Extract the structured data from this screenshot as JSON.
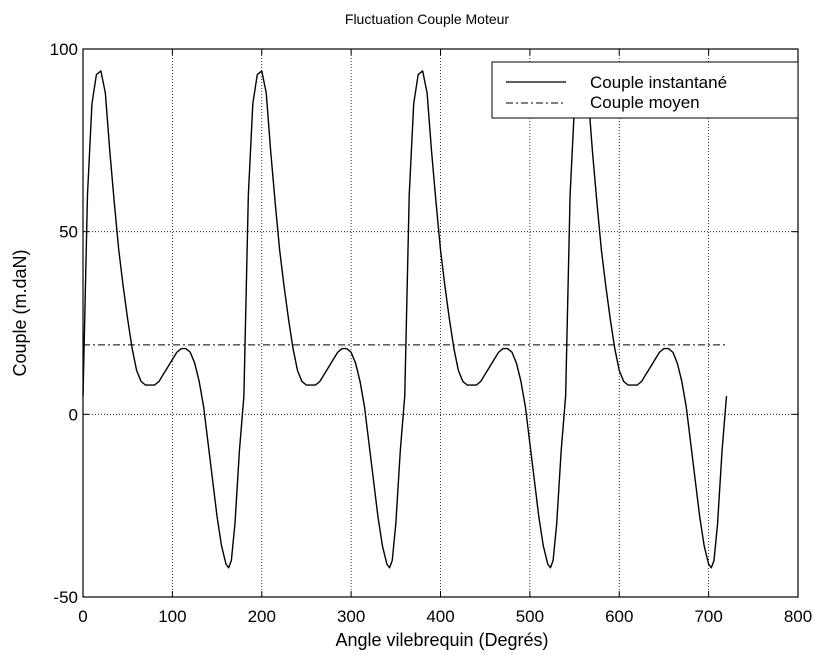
{
  "chart_data": {
    "type": "line",
    "title": "Fluctuation Couple Moteur",
    "xlabel": "Angle vilebrequin (Degrés)",
    "ylabel": "Couple (m.daN)",
    "xlim": [
      0,
      800
    ],
    "ylim": [
      -50,
      100
    ],
    "xticks": [
      0,
      100,
      200,
      300,
      400,
      500,
      600,
      700,
      800
    ],
    "yticks": [
      -50,
      0,
      50,
      100
    ],
    "grid": true,
    "legend_position": "top-right",
    "series": [
      {
        "name": "Couple instantané",
        "style": "solid",
        "color": "#000000",
        "x": [
          0,
          5,
          10,
          15,
          20,
          25,
          30,
          35,
          40,
          45,
          50,
          55,
          60,
          65,
          70,
          75,
          80,
          85,
          90,
          95,
          100,
          105,
          110,
          115,
          120,
          125,
          130,
          135,
          140,
          145,
          150,
          155,
          160,
          163,
          166,
          170,
          175,
          180,
          185,
          190,
          195,
          200,
          205,
          210,
          215,
          220,
          225,
          230,
          235,
          240,
          245,
          250,
          255,
          260,
          265,
          270,
          275,
          280,
          285,
          290,
          295,
          300,
          305,
          310,
          315,
          320,
          325,
          330,
          335,
          340,
          343,
          346,
          350,
          355,
          360,
          365,
          370,
          375,
          380,
          385,
          390,
          395,
          400,
          405,
          410,
          415,
          420,
          425,
          430,
          435,
          440,
          445,
          450,
          455,
          460,
          465,
          470,
          475,
          480,
          485,
          490,
          495,
          500,
          505,
          510,
          515,
          520,
          523,
          526,
          530,
          535,
          540,
          545,
          550,
          555,
          560,
          565,
          570,
          575,
          580,
          585,
          590,
          595,
          600,
          605,
          610,
          615,
          620,
          625,
          630,
          635,
          640,
          645,
          650,
          655,
          660,
          665,
          670,
          675,
          680,
          685,
          690,
          695,
          700,
          703,
          706,
          710,
          715,
          720
        ],
        "y": [
          5,
          60,
          85,
          93,
          94,
          88,
          72,
          58,
          45,
          35,
          26,
          18,
          12,
          9,
          8,
          8,
          8,
          9,
          11,
          13,
          15,
          17,
          18,
          18,
          17,
          14,
          9,
          2,
          -8,
          -18,
          -28,
          -36,
          -41,
          -42,
          -40,
          -30,
          -10,
          5,
          60,
          85,
          93,
          94,
          88,
          72,
          58,
          45,
          35,
          26,
          18,
          12,
          9,
          8,
          8,
          8,
          9,
          11,
          13,
          15,
          17,
          18,
          18,
          17,
          14,
          9,
          2,
          -8,
          -18,
          -28,
          -36,
          -41,
          -42,
          -40,
          -30,
          -10,
          5,
          60,
          85,
          93,
          94,
          88,
          72,
          58,
          45,
          35,
          26,
          18,
          12,
          9,
          8,
          8,
          8,
          9,
          11,
          13,
          15,
          17,
          18,
          18,
          17,
          14,
          9,
          2,
          -8,
          -18,
          -28,
          -36,
          -41,
          -42,
          -40,
          -30,
          -10,
          5,
          60,
          85,
          93,
          94,
          88,
          72,
          58,
          45,
          35,
          26,
          18,
          12,
          9,
          8,
          8,
          8,
          9,
          11,
          13,
          15,
          17,
          18,
          18,
          17,
          14,
          9,
          2,
          -8,
          -18,
          -28,
          -36,
          -41,
          -42,
          -40,
          -30,
          -10,
          5
        ]
      },
      {
        "name": "Couple moyen",
        "style": "dashdot",
        "color": "#000000",
        "x": [
          0,
          720
        ],
        "y": [
          19,
          19
        ]
      }
    ]
  }
}
